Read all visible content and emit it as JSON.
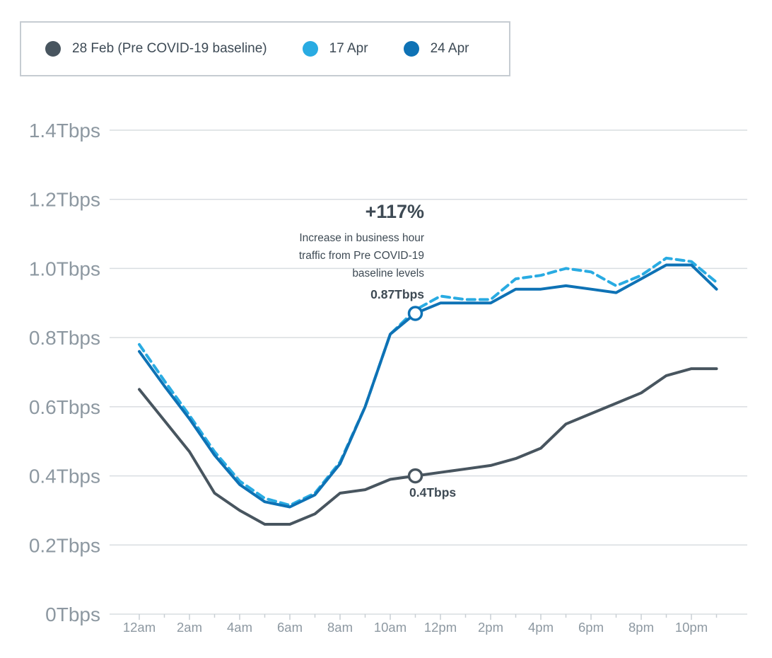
{
  "chart_data": {
    "type": "line",
    "title": "",
    "xlabel": "",
    "ylabel": "",
    "ylim": [
      0,
      1.4
    ],
    "grid": true,
    "legend_position": "top-left",
    "categories": [
      "12am",
      "1am",
      "2am",
      "3am",
      "4am",
      "5am",
      "6am",
      "7am",
      "8am",
      "9am",
      "10am",
      "11am",
      "12pm",
      "1pm",
      "2pm",
      "3pm",
      "4pm",
      "5pm",
      "6pm",
      "7pm",
      "8pm",
      "9pm",
      "10pm",
      "11pm"
    ],
    "x_tick_labels_shown": [
      "12am",
      "2am",
      "4am",
      "6am",
      "8am",
      "10am",
      "12pm",
      "2pm",
      "4pm",
      "6pm",
      "8pm",
      "10pm"
    ],
    "y_ticks": [
      {
        "value": 0,
        "label": "0Tbps"
      },
      {
        "value": 0.2,
        "label": "0.2Tbps"
      },
      {
        "value": 0.4,
        "label": "0.4Tbps"
      },
      {
        "value": 0.6,
        "label": "0.6Tbps"
      },
      {
        "value": 0.8,
        "label": "0.8Tbps"
      },
      {
        "value": 1.0,
        "label": "1.0Tbps"
      },
      {
        "value": 1.2,
        "label": "1.2Tbps"
      },
      {
        "value": 1.4,
        "label": "1.4Tbps"
      }
    ],
    "series": [
      {
        "name": "28 Feb (Pre COVID-19 baseline)",
        "color": "#48555f",
        "style": "solid",
        "values": [
          0.65,
          0.56,
          0.47,
          0.35,
          0.3,
          0.26,
          0.26,
          0.29,
          0.35,
          0.36,
          0.39,
          0.4,
          0.41,
          0.42,
          0.43,
          0.45,
          0.48,
          0.55,
          0.58,
          0.61,
          0.64,
          0.69,
          0.71,
          0.71
        ]
      },
      {
        "name": "17 Apr",
        "color": "#29abe2",
        "style": "dashed",
        "values": [
          0.78,
          0.675,
          0.575,
          0.47,
          0.385,
          0.335,
          0.315,
          0.35,
          0.44,
          0.6,
          0.81,
          0.88,
          0.92,
          0.91,
          0.91,
          0.97,
          0.98,
          1.0,
          0.99,
          0.95,
          0.98,
          1.03,
          1.02,
          0.96
        ]
      },
      {
        "name": "24 Apr",
        "color": "#0e72b5",
        "style": "solid",
        "values": [
          0.76,
          0.66,
          0.565,
          0.46,
          0.375,
          0.325,
          0.31,
          0.345,
          0.435,
          0.6,
          0.81,
          0.87,
          0.9,
          0.9,
          0.9,
          0.94,
          0.94,
          0.95,
          0.94,
          0.93,
          0.97,
          1.01,
          1.01,
          0.94
        ]
      }
    ],
    "markers": [
      {
        "series": "24 Apr",
        "x_index": 11,
        "value": 0.87,
        "label": "0.87Tbps",
        "color": "#0e72b5"
      },
      {
        "series": "28 Feb (Pre COVID-19 baseline)",
        "x_index": 11,
        "value": 0.4,
        "label": "0.4Tbps",
        "color": "#48555f"
      }
    ],
    "annotations": {
      "callout": {
        "title": "+117%",
        "lines": [
          "Increase in business hour",
          "traffic from Pre COVID-19",
          "baseline levels"
        ],
        "value_label": "0.87Tbps"
      },
      "baseline_label": "0.4Tbps"
    },
    "colors": {
      "grid": "#d9dde1",
      "axis_text": "#8d98a1",
      "annotation_text": "#3e4a54"
    }
  }
}
